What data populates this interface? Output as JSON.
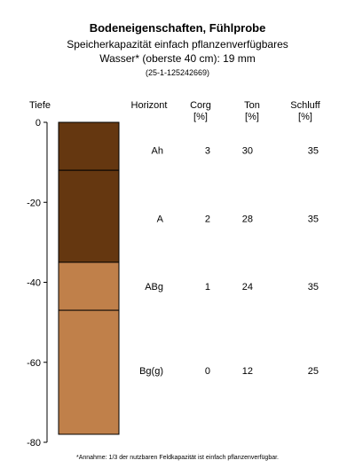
{
  "title": "Bodeneigenschaften, Fühlprobe",
  "subtitle_line1": "Speicherkapazität einfach pflanzenverfügbares",
  "subtitle_line2": "Wasser* (oberste 40 cm): 19 mm",
  "sample_id": "(25-1-125242669)",
  "footnote": "*Annahme: 1/3 der nutzbaren Feldkapazität ist einfach pflanzenverfügbar.",
  "headers": {
    "depth": "Tiefe",
    "horizon": "Horizont",
    "corg": "Corg",
    "corg_unit": "[%]",
    "ton": "Ton",
    "ton_unit": "[%]",
    "schluff": "Schluff",
    "schluff_unit": "[%]"
  },
  "colors": {
    "dark_brown": "#653710",
    "light_brown": "#c0804a",
    "outline": "#000000"
  },
  "chart_data": {
    "type": "table",
    "ylabel": "Tiefe",
    "ylim": [
      -80,
      0
    ],
    "y_ticks": [
      0,
      -20,
      -40,
      -60,
      -80
    ],
    "layers": [
      {
        "top": 0,
        "bottom": -12,
        "color": "#653710"
      },
      {
        "top": -12,
        "bottom": -35,
        "color": "#653710"
      },
      {
        "top": -35,
        "bottom": -47,
        "color": "#c0804a"
      },
      {
        "top": -47,
        "bottom": -78,
        "color": "#c0804a"
      }
    ],
    "horizons": [
      {
        "name": "Ah",
        "depth_label": -7,
        "corg": "3",
        "ton": "30",
        "schluff": "35"
      },
      {
        "name": "A",
        "depth_label": -24,
        "corg": "2",
        "ton": "28",
        "schluff": "35"
      },
      {
        "name": "ABg",
        "depth_label": -41,
        "corg": "1",
        "ton": "24",
        "schluff": "35"
      },
      {
        "name": "Bg(g)",
        "depth_label": -62,
        "corg": "0",
        "ton": "12",
        "schluff": "25"
      }
    ]
  }
}
